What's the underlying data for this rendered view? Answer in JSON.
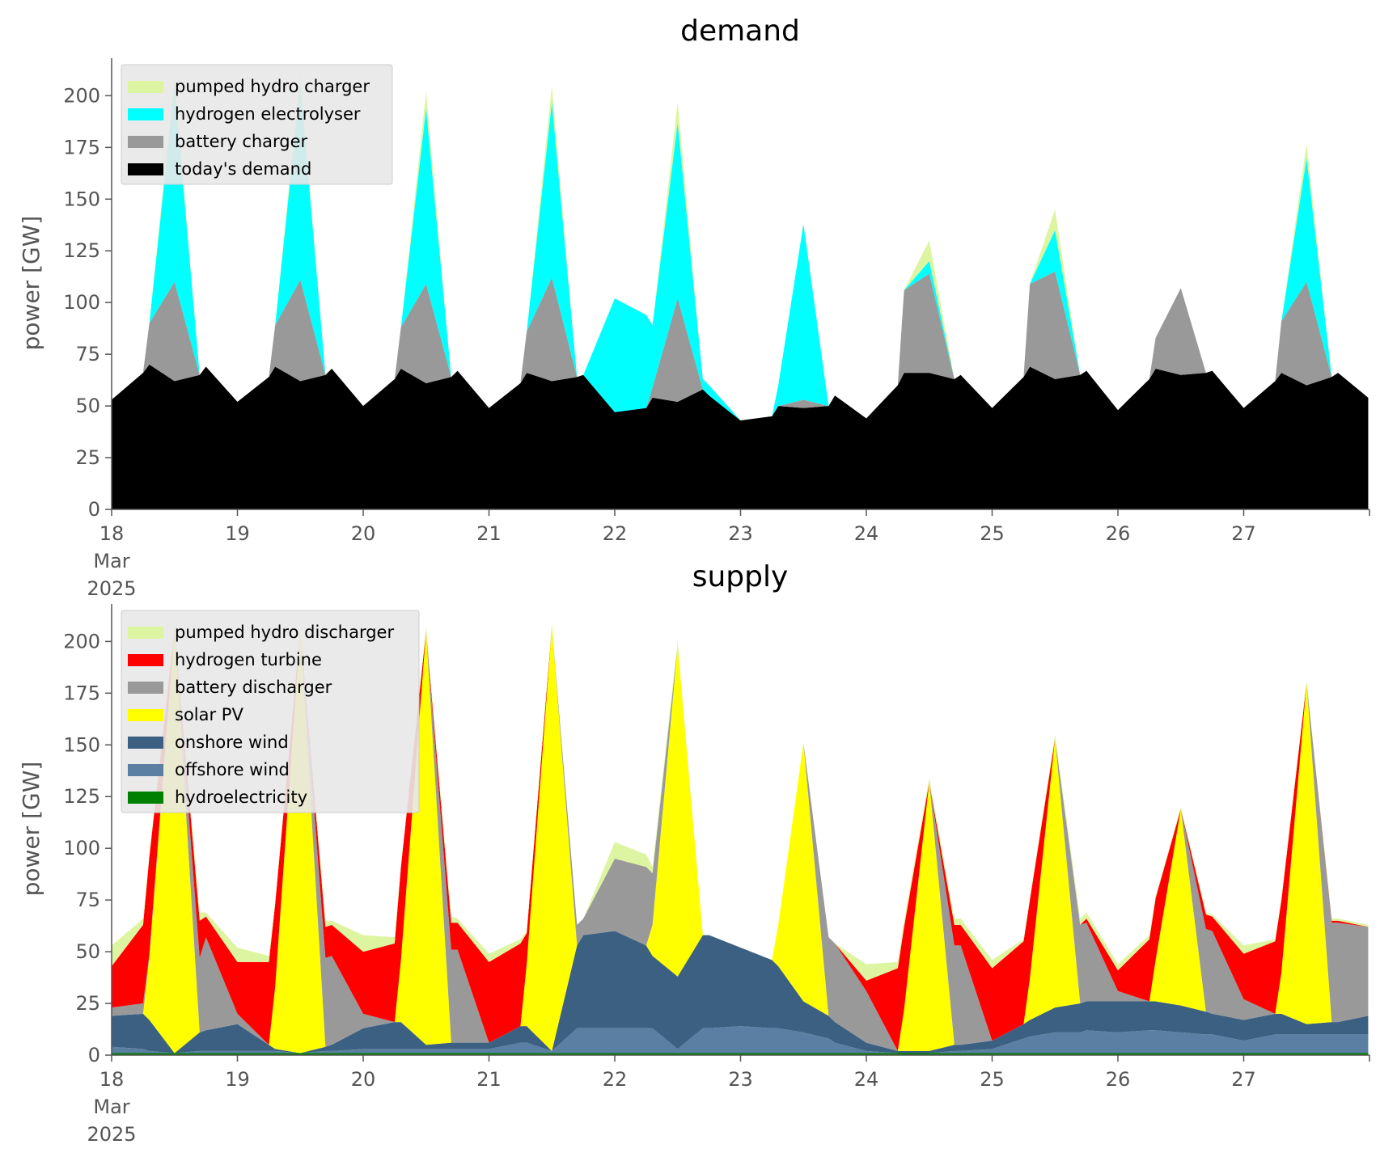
{
  "chart_data": [
    {
      "type": "area",
      "stacked": true,
      "title": "demand",
      "xlabel": "",
      "ylabel": "power [GW]",
      "ylim": [
        0,
        215
      ],
      "yticks": [
        0,
        25,
        50,
        75,
        100,
        125,
        150,
        175,
        200
      ],
      "xlim": [
        18,
        28
      ],
      "xticks": [
        {
          "value": 18,
          "label": "18",
          "sub1": "Mar",
          "sub2": "2025"
        },
        {
          "value": 19,
          "label": "19"
        },
        {
          "value": 20,
          "label": "20"
        },
        {
          "value": 21,
          "label": "21"
        },
        {
          "value": 22,
          "label": "22"
        },
        {
          "value": 23,
          "label": "23"
        },
        {
          "value": 24,
          "label": "24"
        },
        {
          "value": 25,
          "label": "25"
        },
        {
          "value": 26,
          "label": "26"
        },
        {
          "value": 27,
          "label": "27"
        }
      ],
      "grid": false,
      "legend": "top-left",
      "x": [
        18,
        18.25,
        18.3,
        18.5,
        18.7,
        18.75,
        19,
        19.25,
        19.3,
        19.5,
        19.7,
        19.75,
        20,
        20.25,
        20.3,
        20.5,
        20.7,
        20.75,
        21,
        21.25,
        21.3,
        21.5,
        21.7,
        21.75,
        22,
        22.25,
        22.3,
        22.5,
        22.7,
        22.75,
        23,
        23.25,
        23.3,
        23.5,
        23.7,
        23.75,
        24,
        24.25,
        24.3,
        24.5,
        24.7,
        24.75,
        25,
        25.25,
        25.3,
        25.5,
        25.7,
        25.75,
        26,
        26.25,
        26.3,
        26.5,
        26.7,
        26.75,
        27,
        27.25,
        27.3,
        27.5,
        27.7,
        27.75,
        27.99
      ],
      "series": [
        {
          "name": "today's demand",
          "color": "#000000",
          "values": [
            53,
            66,
            70,
            62,
            65,
            69,
            52,
            64,
            69,
            62,
            65,
            68,
            50,
            63,
            68,
            61,
            64,
            67,
            49,
            61,
            66,
            62,
            64,
            65,
            47,
            49,
            54,
            52,
            58,
            55,
            43,
            45,
            50,
            49,
            50,
            55,
            44,
            60,
            66,
            66,
            63,
            65,
            49,
            64,
            69,
            63,
            65,
            67,
            48,
            63,
            68,
            65,
            66,
            67,
            49,
            62,
            66,
            60,
            64,
            66,
            54
          ]
        },
        {
          "name": "battery charger",
          "color": "#999999",
          "values": [
            0,
            0,
            20,
            48,
            0,
            0,
            0,
            0,
            20,
            49,
            0,
            0,
            0,
            0,
            20,
            48,
            0,
            0,
            0,
            0,
            20,
            50,
            0,
            0,
            0,
            0,
            5,
            50,
            0,
            0,
            0,
            0,
            0,
            4,
            0,
            0,
            0,
            0,
            40,
            48,
            0,
            0,
            0,
            0,
            40,
            52,
            0,
            0,
            0,
            0,
            15,
            42,
            0,
            0,
            0,
            0,
            25,
            50,
            0,
            0,
            0
          ]
        },
        {
          "name": "hydrogen electrolyser",
          "color": "#00ffff",
          "values": [
            0,
            0,
            0,
            95,
            0,
            0,
            0,
            0,
            0,
            95,
            0,
            0,
            0,
            0,
            0,
            85,
            0,
            0,
            0,
            0,
            0,
            85,
            0,
            0,
            55,
            45,
            30,
            85,
            5,
            5,
            0,
            0,
            10,
            85,
            0,
            0,
            0,
            0,
            0,
            6,
            0,
            0,
            0,
            0,
            0,
            20,
            0,
            0,
            0,
            0,
            0,
            0,
            0,
            0,
            0,
            0,
            0,
            60,
            0,
            0,
            0
          ]
        },
        {
          "name": "pumped hydro charger",
          "color": "#ddf5a0",
          "values": [
            0,
            0,
            0,
            5,
            0,
            0,
            0,
            0,
            0,
            5,
            0,
            0,
            0,
            0,
            0,
            8,
            0,
            0,
            0,
            0,
            0,
            8,
            0,
            0,
            0,
            0,
            0,
            10,
            0,
            0,
            0,
            0,
            0,
            0,
            0,
            0,
            0,
            0,
            0,
            10,
            0,
            0,
            0,
            0,
            0,
            10,
            0,
            0,
            0,
            0,
            0,
            0,
            0,
            0,
            0,
            0,
            0,
            7,
            0,
            0,
            0
          ]
        }
      ]
    },
    {
      "type": "area",
      "stacked": true,
      "title": "supply",
      "xlabel": "",
      "ylabel": "power [GW]",
      "ylim": [
        0,
        215
      ],
      "yticks": [
        0,
        25,
        50,
        75,
        100,
        125,
        150,
        175,
        200
      ],
      "xlim": [
        18,
        28
      ],
      "xticks": [
        {
          "value": 18,
          "label": "18",
          "sub1": "Mar",
          "sub2": "2025"
        },
        {
          "value": 19,
          "label": "19"
        },
        {
          "value": 20,
          "label": "20"
        },
        {
          "value": 21,
          "label": "21"
        },
        {
          "value": 22,
          "label": "22"
        },
        {
          "value": 23,
          "label": "23"
        },
        {
          "value": 24,
          "label": "24"
        },
        {
          "value": 25,
          "label": "25"
        },
        {
          "value": 26,
          "label": "26"
        },
        {
          "value": 27,
          "label": "27"
        }
      ],
      "grid": false,
      "legend": "top-left",
      "x": [
        18,
        18.25,
        18.3,
        18.5,
        18.7,
        18.75,
        19,
        19.25,
        19.3,
        19.5,
        19.7,
        19.75,
        20,
        20.25,
        20.3,
        20.5,
        20.7,
        20.75,
        21,
        21.25,
        21.3,
        21.5,
        21.7,
        21.75,
        22,
        22.25,
        22.3,
        22.5,
        22.7,
        22.75,
        23,
        23.25,
        23.3,
        23.5,
        23.7,
        23.75,
        24,
        24.25,
        24.3,
        24.5,
        24.7,
        24.75,
        25,
        25.25,
        25.3,
        25.5,
        25.7,
        25.75,
        26,
        26.25,
        26.3,
        26.5,
        26.7,
        26.75,
        27,
        27.25,
        27.3,
        27.5,
        27.7,
        27.75,
        27.99
      ],
      "series": [
        {
          "name": "hydroelectricity",
          "color": "#008000",
          "values": [
            1,
            1,
            1,
            1,
            1,
            1,
            1,
            1,
            1,
            1,
            1,
            1,
            1,
            1,
            1,
            1,
            1,
            1,
            1,
            1,
            1,
            1,
            1,
            1,
            1,
            1,
            1,
            1,
            1,
            1,
            1,
            1,
            1,
            1,
            1,
            1,
            1,
            1,
            1,
            1,
            1,
            1,
            1,
            1,
            1,
            1,
            1,
            1,
            1,
            1,
            1,
            1,
            1,
            1,
            1,
            1,
            1,
            1,
            1,
            1,
            1
          ]
        },
        {
          "name": "offshore wind",
          "color": "#5b7fa3",
          "values": [
            3,
            2,
            1,
            0,
            1,
            1,
            1,
            1,
            1,
            0,
            1,
            1,
            2,
            2,
            2,
            2,
            2,
            2,
            2,
            5,
            5,
            1,
            12,
            12,
            12,
            12,
            12,
            2,
            12,
            12,
            13,
            12,
            12,
            10,
            7,
            5,
            1,
            0,
            0,
            0,
            1,
            1,
            2,
            7,
            8,
            10,
            10,
            11,
            10,
            11,
            11,
            10,
            9,
            9,
            6,
            9,
            9,
            9,
            9,
            9,
            9
          ]
        },
        {
          "name": "onshore wind",
          "color": "#3c6082",
          "values": [
            15,
            17,
            15,
            0,
            9,
            10,
            13,
            3,
            1,
            0,
            2,
            3,
            10,
            13,
            13,
            2,
            3,
            3,
            3,
            8,
            8,
            0,
            40,
            45,
            47,
            40,
            35,
            35,
            45,
            45,
            38,
            33,
            30,
            15,
            11,
            10,
            4,
            1,
            1,
            1,
            3,
            3,
            4,
            7,
            8,
            12,
            14,
            14,
            15,
            14,
            14,
            13,
            11,
            10,
            10,
            10,
            10,
            5,
            6,
            6,
            9
          ]
        },
        {
          "name": "solar PV",
          "color": "#ffff00",
          "values": [
            0,
            0,
            30,
            205,
            0,
            0,
            0,
            0,
            30,
            205,
            0,
            0,
            0,
            0,
            30,
            200,
            0,
            0,
            0,
            0,
            30,
            205,
            0,
            0,
            0,
            0,
            15,
            160,
            0,
            0,
            0,
            0,
            20,
            125,
            0,
            0,
            0,
            0,
            20,
            130,
            0,
            0,
            0,
            0,
            20,
            130,
            0,
            0,
            0,
            0,
            20,
            95,
            0,
            0,
            0,
            0,
            20,
            165,
            0,
            0,
            0
          ]
        },
        {
          "name": "battery discharger",
          "color": "#999999",
          "values": [
            4,
            5,
            2,
            0,
            36,
            45,
            5,
            0,
            0,
            0,
            43,
            43,
            7,
            0,
            0,
            0,
            45,
            45,
            0,
            0,
            0,
            0,
            10,
            8,
            35,
            38,
            25,
            0,
            0,
            0,
            0,
            0,
            0,
            0,
            38,
            38,
            25,
            0,
            0,
            0,
            48,
            48,
            0,
            0,
            0,
            0,
            38,
            38,
            5,
            0,
            0,
            0,
            40,
            40,
            10,
            0,
            0,
            0,
            48,
            48,
            43
          ]
        },
        {
          "name": "hydrogen turbine",
          "color": "#ff0000",
          "values": [
            20,
            38,
            47,
            0,
            18,
            10,
            25,
            40,
            40,
            0,
            15,
            15,
            30,
            38,
            45,
            0,
            13,
            13,
            39,
            40,
            15,
            0,
            0,
            0,
            0,
            0,
            0,
            0,
            0,
            0,
            0,
            0,
            0,
            0,
            0,
            0,
            5,
            40,
            40,
            0,
            10,
            10,
            35,
            40,
            38,
            0,
            0,
            2,
            10,
            30,
            30,
            0,
            7,
            7,
            22,
            35,
            35,
            0,
            1,
            1,
            0
          ]
        },
        {
          "name": "pumped hydro discharger",
          "color": "#ddf5a0",
          "values": [
            10,
            3,
            1,
            3,
            4,
            2,
            7,
            3,
            1,
            2,
            3,
            2,
            8,
            3,
            1,
            2,
            3,
            2,
            4,
            2,
            1,
            2,
            0,
            0,
            8,
            6,
            3,
            2,
            0,
            0,
            0,
            0,
            0,
            0,
            0,
            0,
            8,
            3,
            3,
            2,
            3,
            3,
            4,
            1,
            1,
            2,
            3,
            3,
            3,
            2,
            1,
            1,
            1,
            1,
            4,
            1,
            1,
            1,
            1,
            1,
            1
          ]
        }
      ]
    }
  ]
}
